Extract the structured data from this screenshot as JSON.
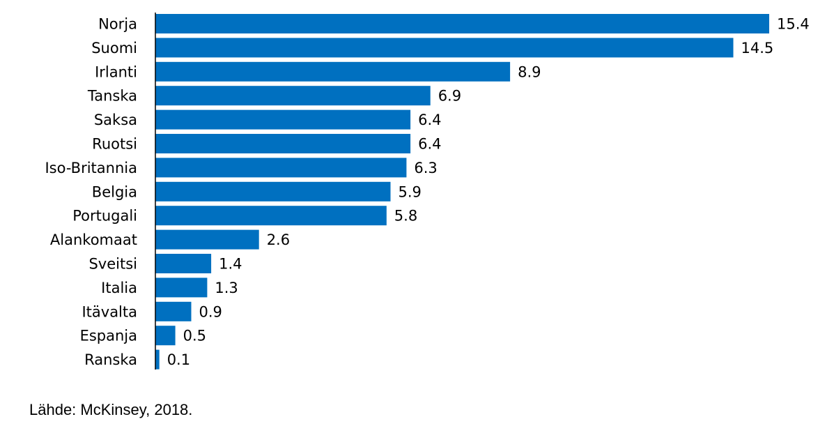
{
  "chart_data": {
    "type": "bar",
    "orientation": "horizontal",
    "categories": [
      "Norja",
      "Suomi",
      "Irlanti",
      "Tanska",
      "Saksa",
      "Ruotsi",
      "Iso-Britannia",
      "Belgia",
      "Portugali",
      "Alankomaat",
      "Sveitsi",
      "Italia",
      "Itävalta",
      "Espanja",
      "Ranska"
    ],
    "values": [
      15.4,
      14.5,
      8.9,
      6.9,
      6.4,
      6.4,
      6.3,
      5.9,
      5.8,
      2.6,
      1.4,
      1.3,
      0.9,
      0.5,
      0.1
    ],
    "value_labels": [
      "15.4",
      "14.5",
      "8.9",
      "6.9",
      "6.4",
      "6.4",
      "6.3",
      "5.9",
      "5.8",
      "2.6",
      "1.4",
      "1.3",
      "0.9",
      "0.5",
      "0.1"
    ],
    "title": "",
    "xlabel": "",
    "ylabel": "",
    "xlim": [
      0,
      15.4
    ],
    "grid": false,
    "legend": "none",
    "bar_color": "#0070C0",
    "axis_color": "#000000"
  },
  "footer": {
    "source": "Lähde: McKinsey, 2018."
  }
}
